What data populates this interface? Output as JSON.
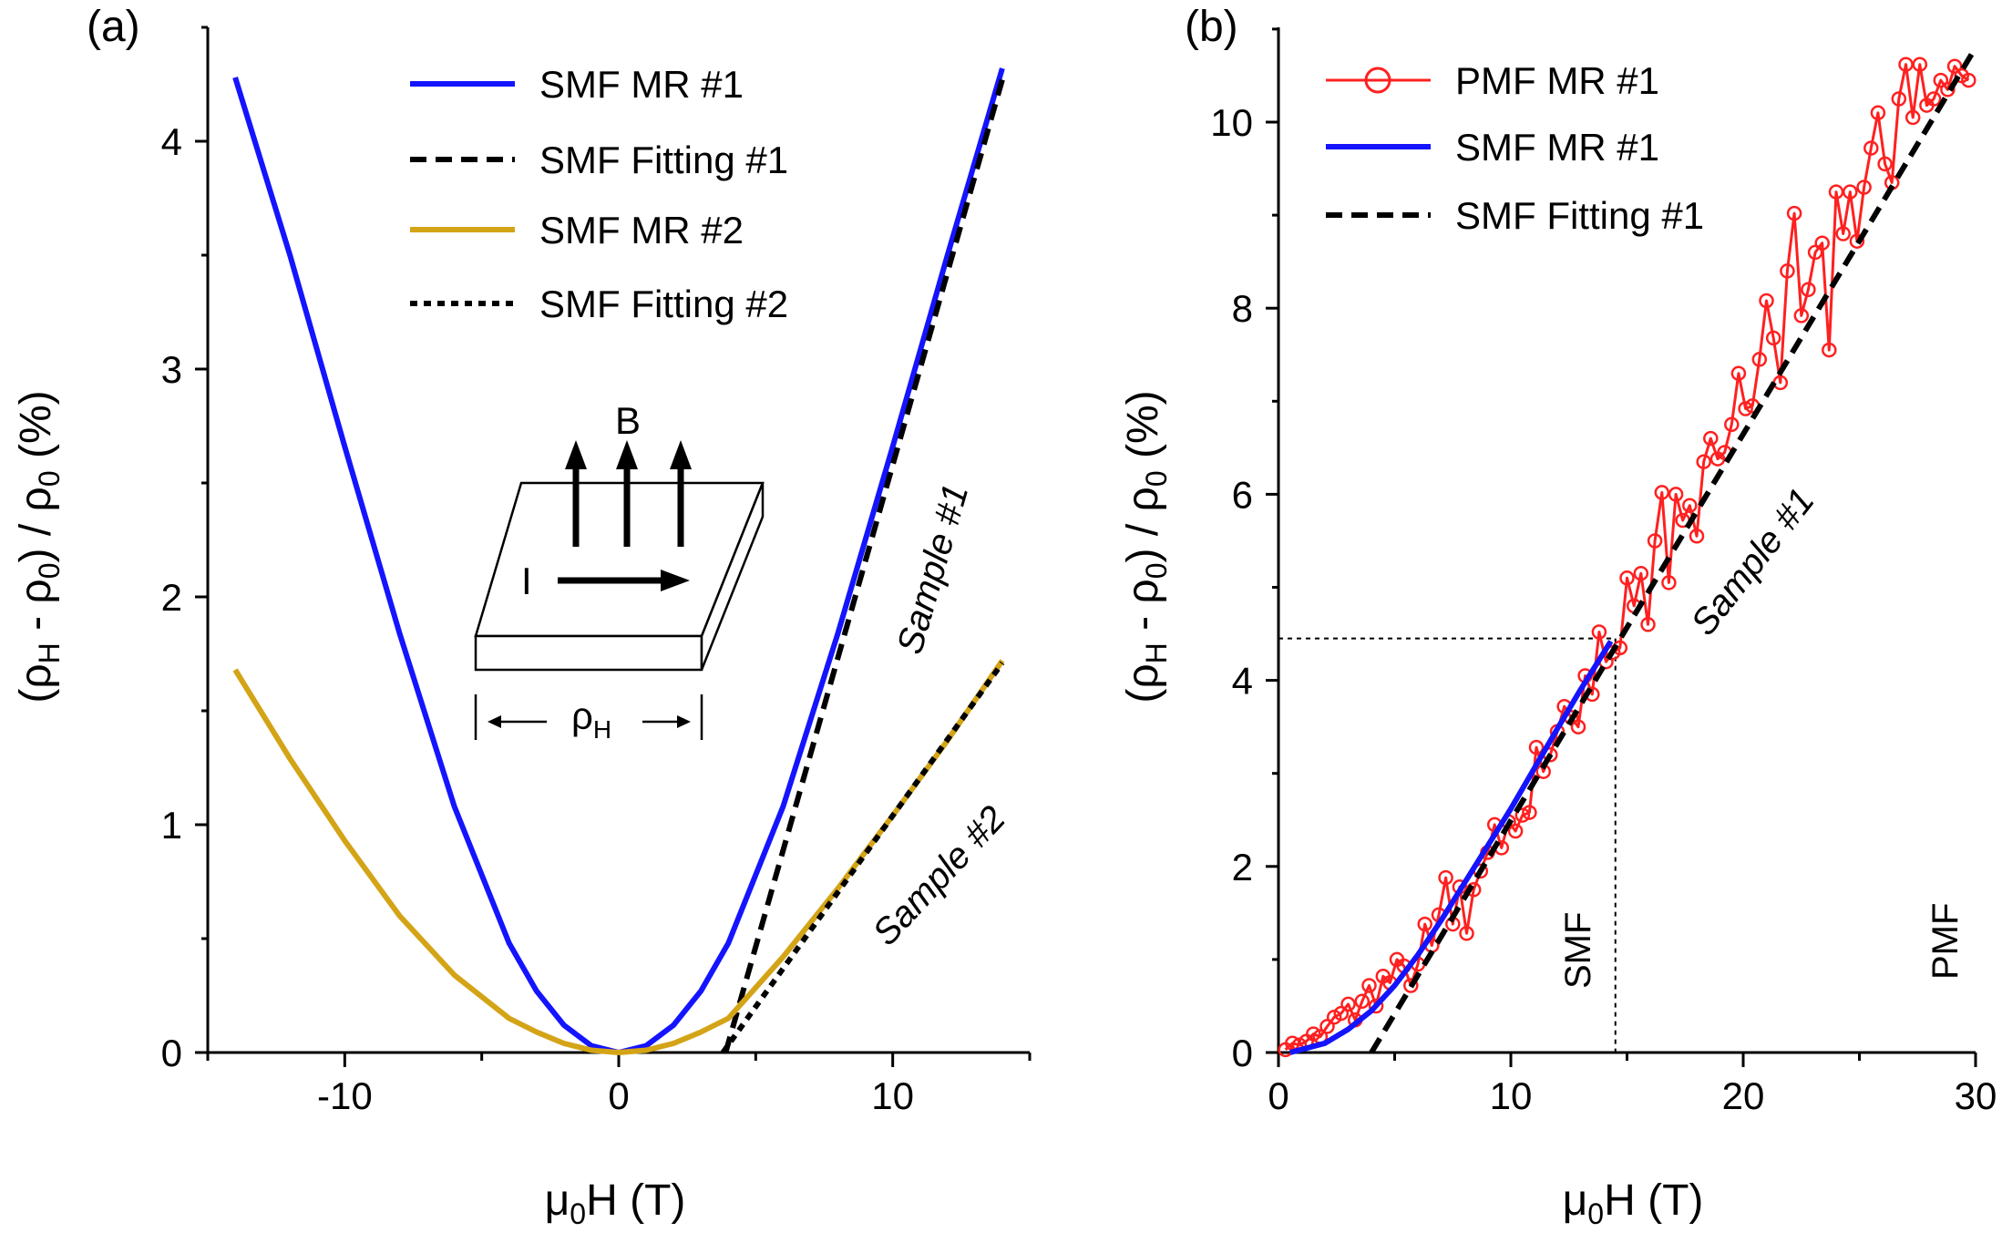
{
  "colors": {
    "blue": "#1414ff",
    "gold": "#d4a417",
    "red": "#ff2020",
    "black": "#000000"
  },
  "chart_data": [
    {
      "panel": "(a)",
      "type": "line",
      "xlabel": "μ0H (T)",
      "ylabel": "(ρH - ρ0) / ρ0 (%)",
      "xlim": [
        -15,
        15
      ],
      "ylim": [
        0,
        4.5
      ],
      "xticks": [
        -10,
        0,
        10
      ],
      "xtick_labels": [
        "-10",
        "0",
        "10"
      ],
      "yticks": [
        0,
        1,
        2,
        3,
        4
      ],
      "ytick_labels": [
        "0",
        "1",
        "2",
        "3",
        "4"
      ],
      "series": [
        {
          "name": "SMF MR #1",
          "style": "solid",
          "color": "#1414ff",
          "x": [
            -14,
            -12,
            -10,
            -8,
            -6,
            -4,
            -3,
            -2,
            -1,
            0,
            1,
            2,
            3,
            4,
            6,
            8,
            10,
            12,
            14
          ],
          "y": [
            4.28,
            3.5,
            2.66,
            1.84,
            1.08,
            0.48,
            0.27,
            0.12,
            0.03,
            0.0,
            0.03,
            0.12,
            0.27,
            0.48,
            1.08,
            1.84,
            2.66,
            3.5,
            4.32
          ]
        },
        {
          "name": "SMF Fitting #1",
          "style": "dashed",
          "color": "#000000",
          "x": [
            3.9,
            14
          ],
          "y": [
            0.0,
            4.27
          ]
        },
        {
          "name": "SMF MR #2",
          "style": "solid",
          "color": "#d4a417",
          "x": [
            -14,
            -12,
            -10,
            -8,
            -6,
            -4,
            -3,
            -2,
            -1,
            0,
            1,
            2,
            3,
            4,
            6,
            8,
            10,
            12,
            14
          ],
          "y": [
            1.68,
            1.29,
            0.93,
            0.6,
            0.34,
            0.15,
            0.09,
            0.04,
            0.01,
            0.0,
            0.01,
            0.04,
            0.09,
            0.15,
            0.42,
            0.72,
            1.04,
            1.37,
            1.72
          ]
        },
        {
          "name": "SMF Fitting #2",
          "style": "dotted",
          "color": "#000000",
          "x": [
            3.8,
            14
          ],
          "y": [
            0.0,
            1.71
          ]
        }
      ],
      "annotations": [
        "Sample #1",
        "Sample #2"
      ],
      "inset": {
        "field_label": "B",
        "current_label": "I",
        "resistivity_label": "ρH"
      }
    },
    {
      "panel": "(b)",
      "type": "line",
      "xlabel": "μ0H (T)",
      "ylabel": "(ρH - ρ0) / ρ0 (%)",
      "xlim": [
        0,
        30
      ],
      "ylim": [
        0,
        11
      ],
      "xticks": [
        0,
        10,
        20,
        30
      ],
      "xtick_labels": [
        "0",
        "10",
        "20",
        "30"
      ],
      "yticks": [
        0,
        2,
        4,
        6,
        8,
        10
      ],
      "ytick_labels": [
        "0",
        "2",
        "4",
        "6",
        "8",
        "10"
      ],
      "series": [
        {
          "name": "PMF MR #1",
          "style": "line-circle",
          "color": "#ff2020",
          "x": [
            0.3,
            0.6,
            0.9,
            1.2,
            1.5,
            1.8,
            2.1,
            2.4,
            2.7,
            3.0,
            3.3,
            3.6,
            3.9,
            4.2,
            4.5,
            4.8,
            5.1,
            5.4,
            5.7,
            6.0,
            6.3,
            6.6,
            6.9,
            7.2,
            7.5,
            7.8,
            8.1,
            8.4,
            8.7,
            9.0,
            9.3,
            9.6,
            9.9,
            10.2,
            10.5,
            10.8,
            11.1,
            11.4,
            11.7,
            12.0,
            12.3,
            12.6,
            12.9,
            13.2,
            13.5,
            13.8,
            14.1,
            14.4,
            14.7,
            15.0,
            15.3,
            15.6,
            15.9,
            16.2,
            16.5,
            16.8,
            17.1,
            17.4,
            17.7,
            18.0,
            18.3,
            18.6,
            18.9,
            19.2,
            19.5,
            19.8,
            20.1,
            20.4,
            20.7,
            21.0,
            21.3,
            21.6,
            21.9,
            22.2,
            22.5,
            22.8,
            23.1,
            23.4,
            23.7,
            24.0,
            24.3,
            24.6,
            24.9,
            25.2,
            25.5,
            25.8,
            26.1,
            26.4,
            26.7,
            27.0,
            27.3,
            27.6,
            27.9,
            28.2,
            28.5,
            28.8,
            29.1,
            29.4,
            29.7
          ],
          "y": [
            0.03,
            0.1,
            0.08,
            0.12,
            0.2,
            0.17,
            0.28,
            0.38,
            0.42,
            0.52,
            0.35,
            0.55,
            0.72,
            0.5,
            0.82,
            0.75,
            1.0,
            0.93,
            0.72,
            0.95,
            1.38,
            1.15,
            1.48,
            1.88,
            1.38,
            1.78,
            1.28,
            1.75,
            1.95,
            2.15,
            2.45,
            2.2,
            2.48,
            2.38,
            2.55,
            2.58,
            3.28,
            3.02,
            3.2,
            3.45,
            3.72,
            3.6,
            3.5,
            4.05,
            3.85,
            4.52,
            4.2,
            4.3,
            4.35,
            5.1,
            4.8,
            5.15,
            4.6,
            5.5,
            6.02,
            5.05,
            6.0,
            5.72,
            5.88,
            5.55,
            6.35,
            6.6,
            6.38,
            6.45,
            6.75,
            7.3,
            6.92,
            6.95,
            7.45,
            8.08,
            7.68,
            7.2,
            8.4,
            9.02,
            7.92,
            8.2,
            8.6,
            8.7,
            7.55,
            9.25,
            8.8,
            9.25,
            8.72,
            9.3,
            9.72,
            10.1,
            9.55,
            9.35,
            10.25,
            10.62,
            10.05,
            10.62,
            10.18,
            10.25,
            10.45,
            10.35,
            10.6,
            10.5,
            10.45
          ]
        },
        {
          "name": "SMF MR #1",
          "style": "solid",
          "color": "#1414ff",
          "x": [
            0.5,
            2,
            3,
            4,
            5,
            6,
            7,
            8,
            9,
            10,
            11,
            12,
            13,
            14.3
          ],
          "y": [
            0.0,
            0.1,
            0.25,
            0.45,
            0.72,
            1.05,
            1.42,
            1.82,
            2.22,
            2.62,
            3.05,
            3.48,
            3.9,
            4.42
          ]
        },
        {
          "name": "SMF Fitting #1",
          "style": "dashed",
          "color": "#000000",
          "x": [
            4.0,
            30
          ],
          "y": [
            0.0,
            10.8
          ]
        }
      ],
      "reference_lines": {
        "x": 14.5,
        "y": 4.45
      },
      "annotations": [
        "Sample #1",
        "SMF",
        "PMF"
      ]
    }
  ],
  "text": {
    "panel_a": "(a)",
    "panel_b": "(b)",
    "legend_a": [
      "SMF MR #1",
      "SMF Fitting #1",
      "SMF MR #2",
      "SMF Fitting #2"
    ],
    "legend_b": [
      "PMF MR #1",
      "SMF MR #1",
      "SMF Fitting #1"
    ],
    "x_label_mu": "μ",
    "x_label_sub": "0",
    "x_label_rest": "H (T)",
    "y_label_open": "(ρ",
    "y_label_sub_h": "H",
    "y_label_minus": " - ρ",
    "y_label_sub_0": "0",
    "y_label_div": ") / ρ",
    "y_label_sub_0b": "0",
    "y_label_pct": " (%)",
    "sample1": "Sample #1",
    "sample2": "Sample #2",
    "smf": "SMF",
    "pmf": "PMF",
    "inset_b": "B",
    "inset_i": "I",
    "inset_rho": "ρ",
    "inset_rho_sub": "H"
  }
}
